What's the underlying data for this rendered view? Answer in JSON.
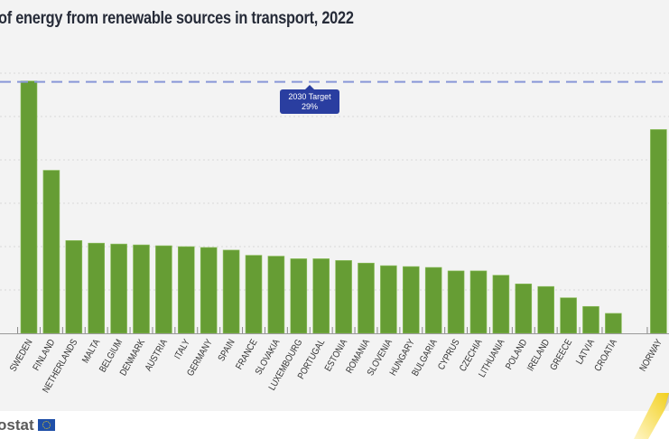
{
  "title": "of energy from renewable sources in transport, 2022",
  "brand": "ostat",
  "chart_data": {
    "type": "bar",
    "title": "of energy from renewable sources in transport, 2022",
    "xlabel": "",
    "ylabel": "",
    "ylim": [
      0,
      30
    ],
    "y_gridlines": [
      5,
      10,
      15,
      20,
      25,
      30
    ],
    "grid": true,
    "units": "%",
    "categories": [
      "SWEDEN",
      "FINLAND",
      "NETHERLANDS",
      "MALTA",
      "BELGIUM",
      "DENMARK",
      "AUSTRIA",
      "ITALY",
      "GERMANY",
      "SPAIN",
      "FRANCE",
      "SLOVAKIA",
      "LUXEMBOURG",
      "PORTUGAL",
      "ESTONIA",
      "ROMANIA",
      "SLOVENIA",
      "HUNGARY",
      "BULGARIA",
      "CYPRUS",
      "CZECHIA",
      "LITHUANIA",
      "POLAND",
      "IRELAND",
      "GREECE",
      "LATVIA",
      "CROATIA",
      "NORWAY"
    ],
    "values": [
      29.1,
      18.8,
      10.7,
      10.4,
      10.3,
      10.2,
      10.1,
      10.0,
      9.9,
      9.6,
      9.0,
      8.9,
      8.6,
      8.6,
      8.4,
      8.1,
      7.8,
      7.7,
      7.6,
      7.2,
      7.2,
      6.7,
      5.7,
      5.4,
      4.1,
      3.1,
      2.3,
      23.5
    ],
    "bar_color": "#669d34",
    "target": {
      "label_line1": "2030 Target",
      "label_line2": "29%",
      "value": 29,
      "color": "#2a3ea0",
      "line_color": "#8896d8"
    }
  }
}
